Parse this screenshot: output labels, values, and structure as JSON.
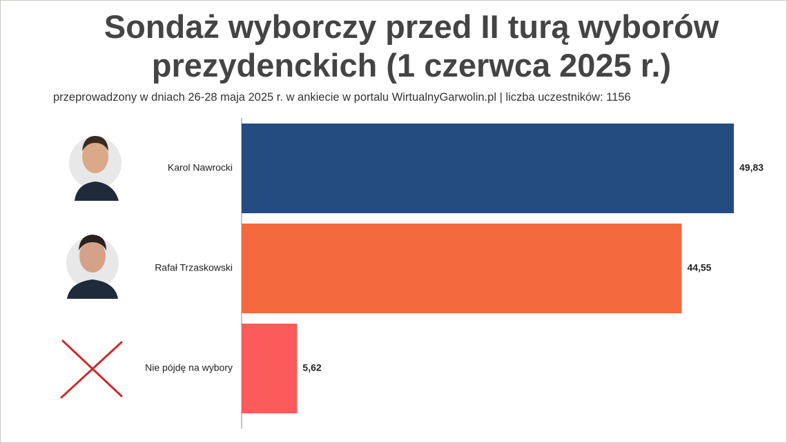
{
  "chart_data": {
    "type": "bar",
    "orientation": "horizontal",
    "title": "Sondaż wyborczy przed II turą wyborów prezydenckich (1 czerwca 2025 r.)",
    "subtitle": "przeprowadzony w dniach 26-28 maja 2025 r. w ankiecie w portalu WirtualnyGarwolin.pl | liczba uczestników: 1156",
    "categories": [
      "Karol Nawrocki",
      "Rafał Trzaskowski",
      "Nie pójdę na wybory"
    ],
    "values": [
      49.83,
      44.55,
      5.62
    ],
    "value_labels": [
      "49,83",
      "44,55",
      "5,62"
    ],
    "colors": [
      "#244b7f",
      "#f4683e",
      "#fb5b5a"
    ]
  }
}
